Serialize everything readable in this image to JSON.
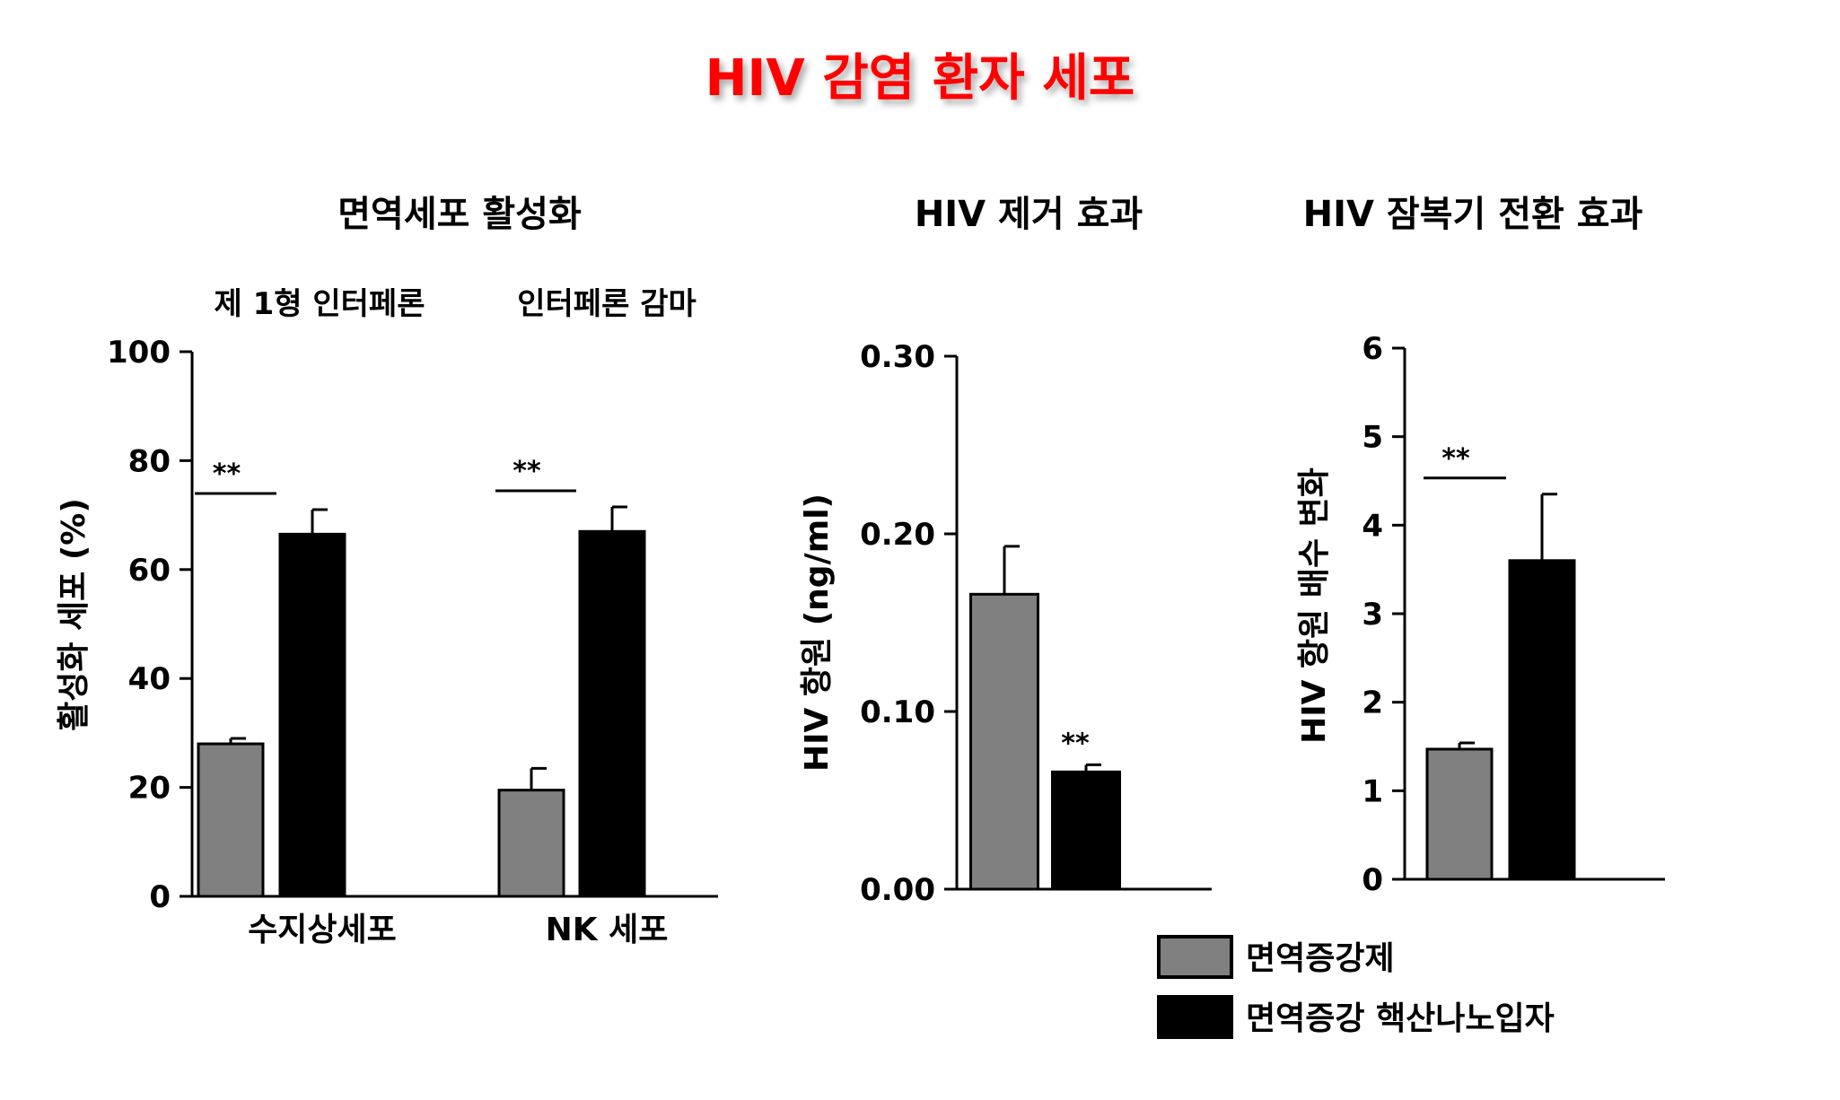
{
  "page": {
    "title": "HIV 감염 환자 세포",
    "title_color": "#ff0000"
  },
  "colors": {
    "gray": "#808080",
    "black": "#000000"
  },
  "legend": {
    "items": [
      {
        "label": "면역증강제",
        "color": "#808080"
      },
      {
        "label": "면역증강 핵산나노입자",
        "color": "#000000"
      }
    ]
  },
  "chart_data": [
    {
      "type": "bar",
      "title": "면역세포 활성화",
      "ylabel": "활성화 세포 (%)",
      "ylim": [
        0,
        100
      ],
      "yticks": [
        "0",
        "20",
        "40",
        "60",
        "80",
        "100"
      ],
      "categories": [
        "수지상세포",
        "NK 세포"
      ],
      "group_labels": [
        "제 1형 인터페론",
        "인터페론 감마"
      ],
      "series": [
        {
          "name": "면역증강제",
          "values": [
            28,
            19.5
          ],
          "errors": [
            1,
            4
          ]
        },
        {
          "name": "면역증강 핵산나노입자",
          "values": [
            66.5,
            67
          ],
          "errors": [
            4.5,
            4.5
          ]
        }
      ],
      "significance": [
        "**",
        "**"
      ]
    },
    {
      "type": "bar",
      "title": "HIV 제거 효과",
      "ylabel": "HIV 항원 (ng/ml)",
      "ylim": [
        0,
        0.3
      ],
      "yticks": [
        "0.00",
        "0.10",
        "0.20",
        "0.30"
      ],
      "categories": [
        ""
      ],
      "series": [
        {
          "name": "면역증강제",
          "values": [
            0.166
          ],
          "errors": [
            0.027
          ]
        },
        {
          "name": "면역증강 핵산나노입자",
          "values": [
            0.066
          ],
          "errors": [
            0.004
          ]
        }
      ],
      "significance": [
        "**"
      ]
    },
    {
      "type": "bar",
      "title": "HIV 잠복기 전환 효과",
      "ylabel": "HIV 항원 배수 변화",
      "ylim": [
        0,
        6
      ],
      "yticks": [
        "0",
        "1",
        "2",
        "3",
        "4",
        "5",
        "6"
      ],
      "categories": [
        ""
      ],
      "series": [
        {
          "name": "면역증강제",
          "values": [
            1.47
          ],
          "errors": [
            0.07
          ]
        },
        {
          "name": "면역증강 핵산나노입자",
          "values": [
            3.6
          ],
          "errors": [
            0.75
          ]
        }
      ],
      "significance": [
        "**"
      ]
    }
  ]
}
